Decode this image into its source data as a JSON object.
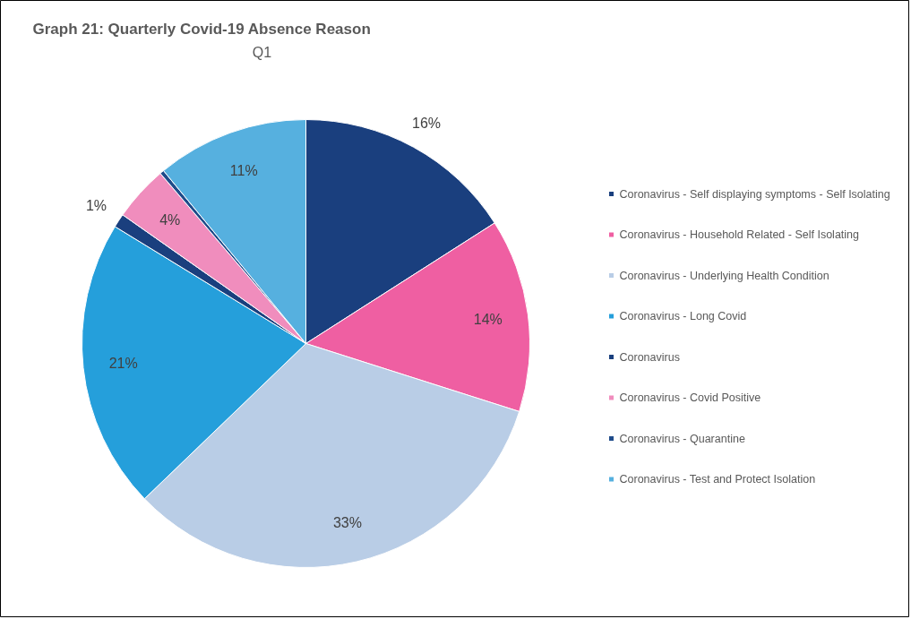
{
  "chart_data": {
    "type": "pie",
    "title": "Graph 21: Quarterly Covid-19 Absence Reason",
    "subtitle": "Q1",
    "categories": [
      "Coronavirus - Self displaying symptoms - Self Isolating",
      "Coronavirus - Household Related - Self Isolating",
      "Coronavirus - Underlying Health Condition",
      "Coronavirus - Long Covid",
      "Coronavirus",
      "Coronavirus - Covid Positive",
      "Coronavirus - Quarantine",
      "Coronavirus - Test and Protect Isolation"
    ],
    "values": [
      16,
      14,
      33,
      21,
      1,
      4,
      0.3,
      11
    ],
    "value_labels": [
      "16%",
      "14%",
      "33%",
      "21%",
      "1%",
      "4%",
      null,
      "11%"
    ],
    "colors": [
      "#1a3f7e",
      "#ef5fa2",
      "#b9cde6",
      "#259fdb",
      "#1a3f7e",
      "#f08dbd",
      "#1f4b8a",
      "#56b0df"
    ],
    "legend": "right"
  }
}
